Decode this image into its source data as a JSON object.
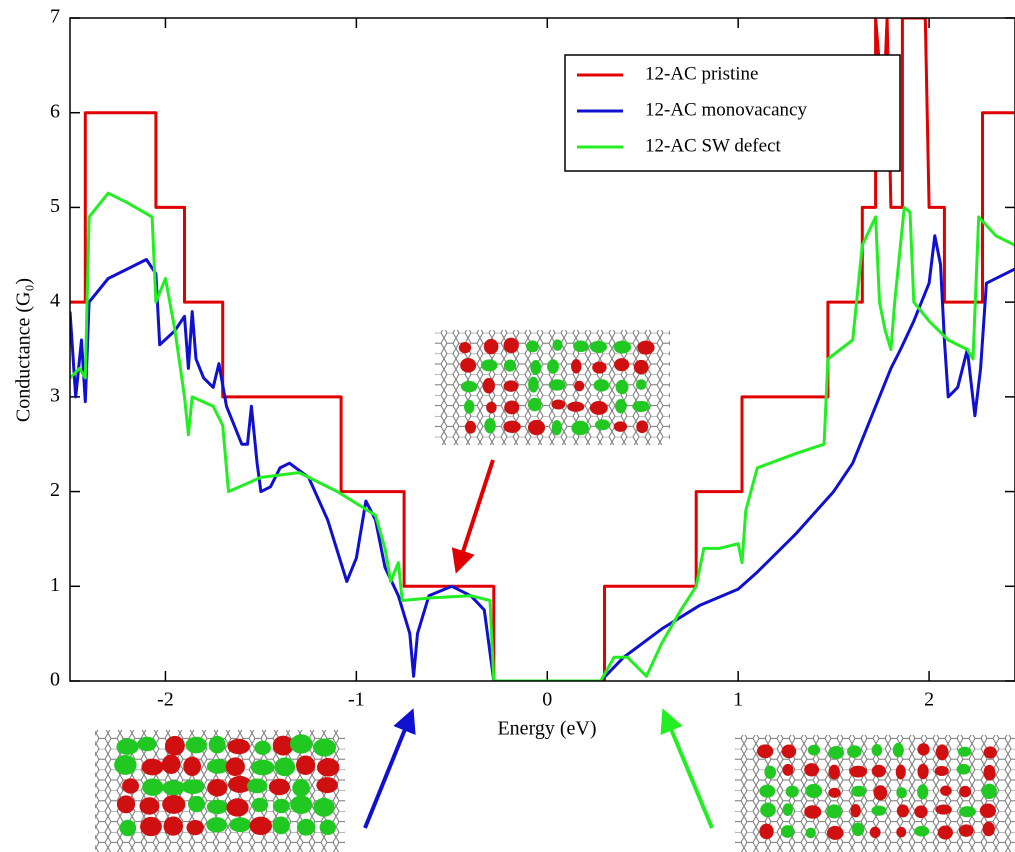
{
  "chart_data": {
    "type": "line",
    "x_label": "Energy (eV)",
    "y_label": "Conductance (G₀)",
    "xlim": [
      -2.5,
      2.45
    ],
    "ylim": [
      0,
      7
    ],
    "xticks": [
      -2,
      -1,
      0,
      1,
      2
    ],
    "yticks": [
      0,
      1,
      2,
      3,
      4,
      5,
      6,
      7
    ],
    "legend": "upper right",
    "series": [
      {
        "name": "12-AC pristine",
        "color": "#e00000",
        "x": [
          -2.5,
          -2.42,
          -2.42,
          -2.05,
          -2.05,
          -1.9,
          -1.9,
          -1.7,
          -1.7,
          -1.08,
          -1.08,
          -0.75,
          -0.75,
          -0.28,
          -0.28,
          0.3,
          0.3,
          0.78,
          0.78,
          1.02,
          1.02,
          1.47,
          1.47,
          1.65,
          1.65,
          1.72,
          1.72,
          1.76,
          1.78,
          1.8,
          1.86,
          1.86,
          1.98,
          2.0,
          2.08,
          2.08,
          2.28,
          2.28,
          2.45
        ],
        "values": [
          4,
          4,
          6,
          6,
          5,
          5,
          4,
          4,
          3,
          3,
          2,
          2,
          1,
          1,
          0,
          0,
          1,
          1,
          2,
          2,
          3,
          3,
          4,
          4,
          5,
          5,
          7,
          6,
          7,
          5,
          5,
          7,
          7,
          5,
          5,
          4,
          4,
          6,
          6
        ]
      },
      {
        "name": "12-AC monovacancy",
        "color": "#1010d0",
        "x": [
          -2.5,
          -2.47,
          -2.44,
          -2.42,
          -2.4,
          -2.3,
          -2.1,
          -2.05,
          -2.03,
          -1.95,
          -1.9,
          -1.88,
          -1.86,
          -1.84,
          -1.8,
          -1.75,
          -1.72,
          -1.68,
          -1.6,
          -1.57,
          -1.55,
          -1.52,
          -1.5,
          -1.45,
          -1.4,
          -1.35,
          -1.25,
          -1.15,
          -1.05,
          -1.0,
          -0.95,
          -0.9,
          -0.85,
          -0.78,
          -0.72,
          -0.7,
          -0.68,
          -0.62,
          -0.5,
          -0.4,
          -0.33,
          -0.3,
          -0.28,
          0.28,
          0.4,
          0.6,
          0.8,
          1.0,
          1.1,
          1.3,
          1.5,
          1.6,
          1.7,
          1.8,
          1.85,
          1.92,
          2.0,
          2.03,
          2.06,
          2.08,
          2.1,
          2.15,
          2.2,
          2.24,
          2.27,
          2.3,
          2.45
        ],
        "values": [
          3.9,
          3.0,
          3.6,
          2.95,
          4.0,
          4.25,
          4.45,
          4.3,
          3.55,
          3.7,
          3.85,
          3.3,
          3.9,
          3.4,
          3.2,
          3.1,
          3.35,
          2.9,
          2.5,
          2.5,
          2.9,
          2.3,
          2.0,
          2.05,
          2.25,
          2.3,
          2.15,
          1.7,
          1.05,
          1.3,
          1.9,
          1.7,
          1.2,
          0.9,
          0.5,
          0.05,
          0.5,
          0.9,
          1.0,
          0.9,
          0.75,
          0.3,
          0,
          0,
          0.25,
          0.55,
          0.8,
          0.97,
          1.15,
          1.55,
          2.0,
          2.3,
          2.8,
          3.3,
          3.5,
          3.8,
          4.2,
          4.7,
          4.4,
          3.6,
          3.0,
          3.1,
          3.5,
          2.8,
          3.3,
          4.2,
          4.35
        ]
      },
      {
        "name": "12-AC SW defect",
        "color": "#22ee22",
        "x": [
          -2.5,
          -2.45,
          -2.42,
          -2.4,
          -2.3,
          -2.2,
          -2.07,
          -2.05,
          -2.0,
          -1.95,
          -1.9,
          -1.88,
          -1.86,
          -1.75,
          -1.7,
          -1.67,
          -1.5,
          -1.3,
          -1.1,
          -0.9,
          -0.85,
          -0.82,
          -0.78,
          -0.76,
          -0.6,
          -0.4,
          -0.3,
          -0.28,
          0.28,
          0.35,
          0.42,
          0.52,
          0.6,
          0.7,
          0.78,
          0.82,
          0.9,
          1.0,
          1.02,
          1.04,
          1.1,
          1.3,
          1.45,
          1.47,
          1.6,
          1.65,
          1.72,
          1.74,
          1.77,
          1.8,
          1.82,
          1.87,
          1.9,
          1.92,
          2.0,
          2.1,
          2.2,
          2.23,
          2.26,
          2.35,
          2.45
        ],
        "values": [
          3.2,
          3.3,
          3.2,
          4.9,
          5.15,
          5.05,
          4.9,
          4.0,
          4.25,
          3.7,
          3.0,
          2.6,
          3.0,
          2.9,
          2.7,
          2.0,
          2.15,
          2.2,
          2.0,
          1.75,
          1.4,
          1.05,
          1.25,
          0.85,
          0.88,
          0.9,
          0.85,
          0,
          0,
          0.25,
          0.25,
          0.05,
          0.4,
          0.75,
          1.0,
          1.4,
          1.4,
          1.45,
          1.25,
          1.8,
          2.25,
          2.4,
          2.5,
          3.4,
          3.6,
          4.6,
          4.9,
          4.0,
          3.7,
          3.5,
          4.0,
          5.0,
          4.95,
          4.0,
          3.8,
          3.6,
          3.5,
          3.4,
          4.9,
          4.7,
          4.6
        ]
      }
    ]
  }
}
